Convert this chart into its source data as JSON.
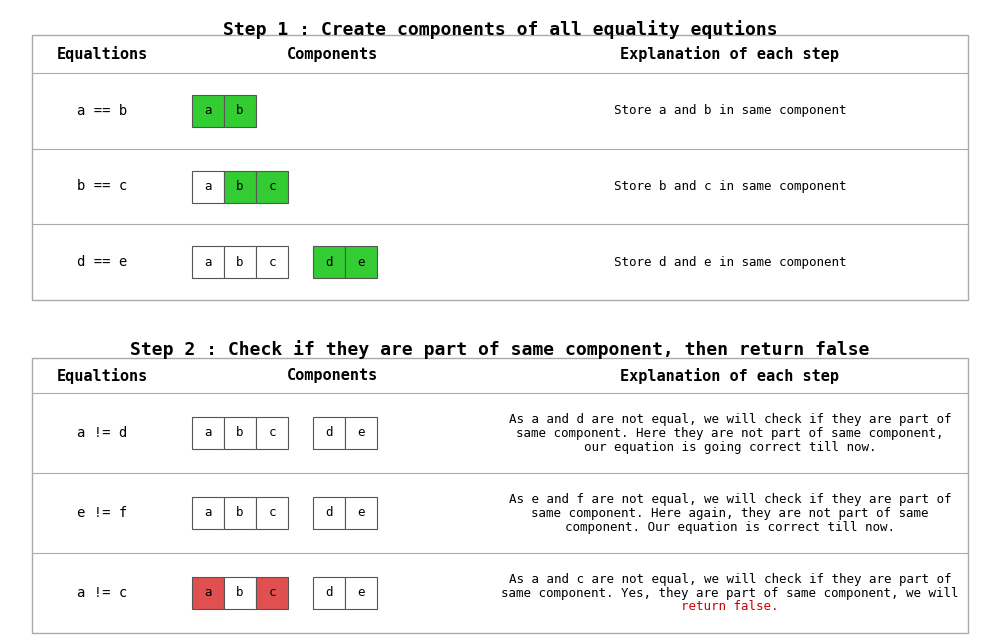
{
  "title1": "Step 1 : Create components of all equality equtions",
  "title2": "Step 2 : Check if they are part of same component, then return false",
  "header_cols": [
    "Equaltions",
    "Components",
    "Explanation of each step"
  ],
  "bg_color": "#ffffff",
  "green": "#33cc33",
  "red_color": "#e05050",
  "step1_rows": [
    {
      "eq": "a == b",
      "explanation": "Store a and b in same component",
      "component1": {
        "cells": [
          "a",
          "b"
        ],
        "colors": [
          "#33cc33",
          "#33cc33"
        ]
      },
      "component2": null
    },
    {
      "eq": "b == c",
      "explanation": "Store b and c in same component",
      "component1": {
        "cells": [
          "a",
          "b",
          "c"
        ],
        "colors": [
          "#ffffff",
          "#33cc33",
          "#33cc33"
        ]
      },
      "component2": null
    },
    {
      "eq": "d == e",
      "explanation": "Store d and e in same component",
      "component1": {
        "cells": [
          "a",
          "b",
          "c"
        ],
        "colors": [
          "#ffffff",
          "#ffffff",
          "#ffffff"
        ]
      },
      "component2": {
        "cells": [
          "d",
          "e"
        ],
        "colors": [
          "#33cc33",
          "#33cc33"
        ]
      }
    }
  ],
  "step2_rows": [
    {
      "eq": "a != d",
      "explanation_lines": [
        "As a and d are not equal, we will check if they are part of",
        "same component. Here they are not part of same component,",
        "our equation is going correct till now."
      ],
      "red_line": null,
      "component1": {
        "cells": [
          "a",
          "b",
          "c"
        ],
        "colors": [
          "#ffffff",
          "#ffffff",
          "#ffffff"
        ]
      },
      "component2": {
        "cells": [
          "d",
          "e"
        ],
        "colors": [
          "#ffffff",
          "#ffffff"
        ]
      }
    },
    {
      "eq": "e != f",
      "explanation_lines": [
        "As e and f are not equal, we will check if they are part of",
        "same component. Here again, they are not part of same",
        "component. Our equation is correct till now."
      ],
      "red_line": null,
      "component1": {
        "cells": [
          "a",
          "b",
          "c"
        ],
        "colors": [
          "#ffffff",
          "#ffffff",
          "#ffffff"
        ]
      },
      "component2": {
        "cells": [
          "d",
          "e"
        ],
        "colors": [
          "#ffffff",
          "#ffffff"
        ]
      }
    },
    {
      "eq": "a != c",
      "explanation_lines": [
        "As a and c are not equal, we will check if they are part of",
        "same component. Yes, they are part of same component, we will",
        "return false."
      ],
      "red_line": "return false.",
      "component1": {
        "cells": [
          "a",
          "b",
          "c"
        ],
        "colors": [
          "#e05050",
          "#ffffff",
          "#e05050"
        ]
      },
      "component2": {
        "cells": [
          "d",
          "e"
        ],
        "colors": [
          "#ffffff",
          "#ffffff"
        ]
      }
    }
  ]
}
